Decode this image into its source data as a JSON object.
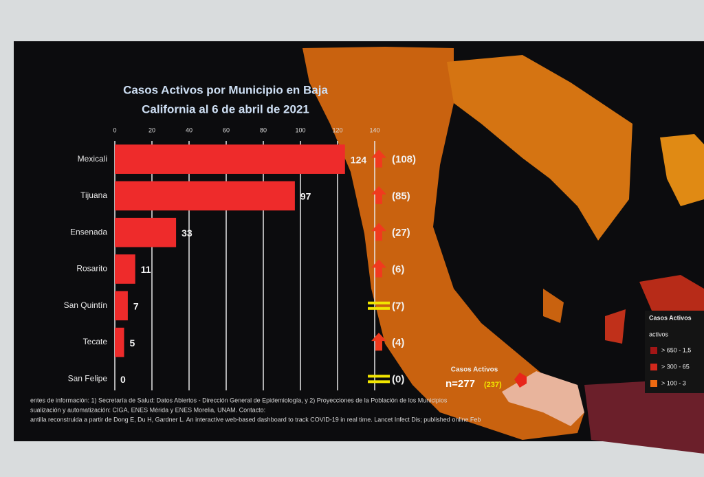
{
  "chart_data": {
    "type": "hbar",
    "title": [
      "Casos Activos por Municipio en Baja",
      "California al 6 de abril de 2021"
    ],
    "categories": [
      "Mexicali",
      "Tijuana",
      "Ensenada",
      "Rosarito",
      "San Quintín",
      "Tecate",
      "San Felipe"
    ],
    "values": [
      124,
      97,
      33,
      11,
      7,
      5,
      0
    ],
    "color": "#ee2b2b",
    "previous": {
      "values": [
        108,
        85,
        27,
        6,
        7,
        4,
        0
      ],
      "value_labels": [
        "(108)",
        "(85)",
        "(27)",
        "(6)",
        "(7)",
        "(4)",
        "(0)"
      ]
    },
    "up_color": "#f03a1e",
    "equal_color": "#f2e600",
    "xlim": [
      0,
      140
    ],
    "xticks": [
      0,
      20,
      40,
      60,
      80,
      100,
      120,
      140
    ],
    "grid": true,
    "total": {
      "title": "Casos Activos",
      "label": "n=277",
      "previous_label": "(237)"
    },
    "legend": {
      "title": "Casos Activos",
      "subtitle": "activos",
      "items": [
        {
          "label": "> 650 - 1,5",
          "color": "#a31616"
        },
        {
          "label": "> 300 - 65",
          "color": "#d2281c"
        },
        {
          "label": "> 100 - 3",
          "color": "#ee6a12"
        }
      ]
    },
    "sources": [
      "entes de información: 1) Secretaría de Salud: Datos Abiertos - Dirección General de Epidemiología, y 2) Proyecciones de la Población de los Municipios",
      "sualización y automatización: CIGA, ENES Mérida y ENES Morelia, UNAM. Contacto:",
      "antilla reconstruida a partir de Dong E, Du H, Gardner L. An interactive web-based dashboard to track COVID-19 in real time. Lancet Infect Dis; published online Feb"
    ]
  }
}
